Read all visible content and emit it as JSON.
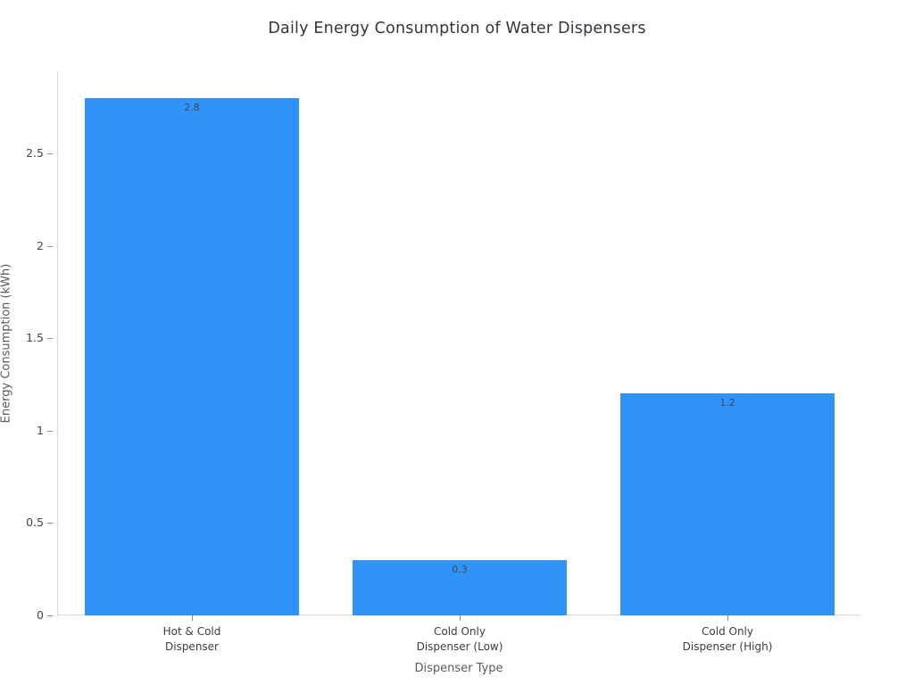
{
  "chart_data": {
    "type": "bar",
    "title": "Daily Energy Consumption of Water Dispensers",
    "xlabel": "Dispenser Type",
    "ylabel": "Energy Consumption (kWh)",
    "categories": [
      "Hot & Cold\nDispenser",
      "Cold Only\nDispenser (Low)",
      "Cold Only\nDispenser (High)"
    ],
    "values": [
      2.8,
      0.3,
      1.2
    ],
    "value_labels": [
      "2.8",
      "0.3",
      "1.2"
    ],
    "yticks": [
      0,
      0.5,
      1,
      1.5,
      2,
      2.5
    ],
    "ytick_labels": [
      "0",
      "0.5",
      "1",
      "1.5",
      "2",
      "2.5"
    ],
    "ylim": [
      0,
      2.944
    ],
    "grid": false,
    "legend": "none",
    "bar_color": "#2f93f7",
    "axis_line_color": "#d9d9d9",
    "tick_color": "#8f8f8f",
    "title_color": "#32363e",
    "bar_gap_fraction": 0.2
  }
}
